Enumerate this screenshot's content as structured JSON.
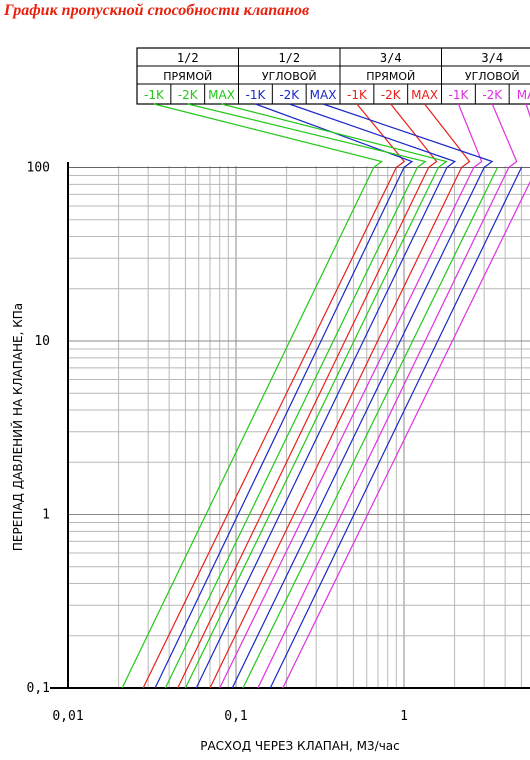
{
  "title": "График пропускной способности клапанов",
  "colors": {
    "green": "#22c818",
    "red": "#e8201a",
    "blue": "#1a28c8",
    "magenta": "#e030e0",
    "title": "#e8200c",
    "grid": "#b8b8b8",
    "axis": "#000000"
  },
  "legend_table": {
    "groups": [
      {
        "size": "1/2",
        "type": "ПРЯМОЙ",
        "color": "green",
        "items": [
          {
            "label": "-1K"
          },
          {
            "label": "-2K"
          },
          {
            "label": "MAX"
          }
        ]
      },
      {
        "size": "1/2",
        "type": "УГЛОВОЙ",
        "color": "blue",
        "items": [
          {
            "label": "-1K"
          },
          {
            "label": "-2K"
          },
          {
            "label": "MAX"
          }
        ]
      },
      {
        "size": "3/4",
        "type": "ПРЯМОЙ",
        "color": "red",
        "items": [
          {
            "label": "-1K"
          },
          {
            "label": "-2K"
          },
          {
            "label": "MAX"
          }
        ]
      },
      {
        "size": "3/4",
        "type": "УГЛОВОЙ",
        "color": "magenta",
        "items": [
          {
            "label": "-1K"
          },
          {
            "label": "-2K"
          },
          {
            "label": "MA"
          }
        ]
      }
    ]
  },
  "chart_data": {
    "type": "line",
    "xscale": "log",
    "yscale": "log",
    "xlabel": "РАСХОД ЧЕРЕЗ КЛАПАН, М3/час",
    "ylabel": "ПЕРЕПАД ДАВЛЕНИЙ НА КЛАПАНЕ, КПа",
    "xlim": [
      0.01,
      10
    ],
    "ylim": [
      0.1,
      100
    ],
    "x_ticks": [
      {
        "value": 0.01,
        "label": "0,01"
      },
      {
        "value": 0.1,
        "label": "0,1"
      },
      {
        "value": 1,
        "label": "1"
      }
    ],
    "y_ticks": [
      {
        "value": 0.1,
        "label": "0,1"
      },
      {
        "value": 1,
        "label": "1"
      },
      {
        "value": 10,
        "label": "10"
      },
      {
        "value": 100,
        "label": "100"
      }
    ],
    "grid": true,
    "series": [
      {
        "color": "green",
        "x": [
          0.021,
          0.66
        ]
      },
      {
        "color": "red",
        "x": [
          0.028,
          0.9
        ]
      },
      {
        "color": "blue",
        "x": [
          0.033,
          1.0
        ]
      },
      {
        "color": "green",
        "x": [
          0.038,
          1.2
        ]
      },
      {
        "color": "red",
        "x": [
          0.045,
          1.4
        ]
      },
      {
        "color": "green",
        "x": [
          0.05,
          1.6
        ]
      },
      {
        "color": "blue",
        "x": [
          0.058,
          1.8
        ]
      },
      {
        "color": "red",
        "x": [
          0.07,
          2.2
        ]
      },
      {
        "color": "magenta",
        "x": [
          0.08,
          2.6
        ]
      },
      {
        "color": "blue",
        "x": [
          0.095,
          3.0
        ]
      },
      {
        "color": "green",
        "x": [
          0.11,
          3.6
        ]
      },
      {
        "color": "magenta",
        "x": [
          0.135,
          4.2
        ]
      },
      {
        "color": "blue",
        "x": [
          0.16,
          5.0
        ]
      },
      {
        "color": "magenta",
        "x": [
          0.19,
          6.2
        ]
      }
    ]
  }
}
